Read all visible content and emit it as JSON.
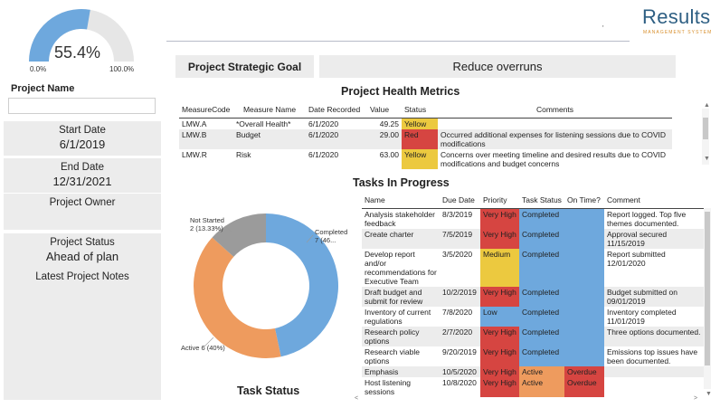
{
  "gauge": {
    "value": 55.4,
    "value_label": "55.4%",
    "min_label": "0.0%",
    "max_label": "100.0%",
    "fill_color": "#6ea8dd",
    "track_color": "#e6e6e6"
  },
  "project_name_label": "Project Name",
  "project_name_value": "",
  "start_date": {
    "label": "Start Date",
    "value": "6/1/2019"
  },
  "end_date": {
    "label": "End Date",
    "value": "12/31/2021"
  },
  "project_owner": {
    "label": "Project Owner",
    "value": ""
  },
  "project_status": {
    "label": "Project Status",
    "value": "Ahead of plan"
  },
  "latest_notes": {
    "label": "Latest Project Notes",
    "value": ""
  },
  "header": {
    "tick": "'"
  },
  "logo": {
    "main": "Results",
    "sub": "MANAGEMENT SYSTEM"
  },
  "goal": {
    "label": "Project Strategic Goal",
    "value": "Reduce overruns"
  },
  "health": {
    "title": "Project Health Metrics",
    "columns": [
      "MeasureCode",
      "Measure Name",
      "Date Recorded",
      "Value",
      "Status",
      "Comments"
    ],
    "rows": [
      {
        "code": "LMW.A",
        "name": "*Overall Health*",
        "date": "6/1/2020",
        "value": "49.25",
        "status": "Yellow",
        "comment": ""
      },
      {
        "code": "LMW.B",
        "name": "Budget",
        "date": "6/1/2020",
        "value": "29.00",
        "status": "Red",
        "comment": "Occurred additional expenses for listening sessions due to COVID modifications"
      },
      {
        "code": "LMW.R",
        "name": "Risk",
        "date": "6/1/2020",
        "value": "63.00",
        "status": "Yellow",
        "comment": "Concerns over meeting timeline and desired results due to COVID modifications and budget concerns"
      }
    ]
  },
  "tasks": {
    "title": "Tasks In Progress",
    "columns": [
      "Name",
      "Due Date",
      "Priority",
      "Task Status",
      "On Time?",
      "Comment"
    ],
    "rows": [
      {
        "name": "Analysis stakeholder feedback",
        "due": "8/3/2019",
        "priority": "Very High",
        "status": "Completed",
        "ontime": "",
        "comment": "Report logged. Top five themes documented."
      },
      {
        "name": "Create charter",
        "due": "7/5/2019",
        "priority": "Very High",
        "status": "Completed",
        "ontime": "",
        "comment": "Approval secured 11/15/2019"
      },
      {
        "name": "Develop report and/or recommendations for Executive Team",
        "due": "3/5/2020",
        "priority": "Medium",
        "status": "Completed",
        "ontime": "",
        "comment": "Report submitted 12/01/2020"
      },
      {
        "name": "Draft budget and submit for review",
        "due": "10/2/2019",
        "priority": "Very High",
        "status": "Completed",
        "ontime": "",
        "comment": "Budget submitted on 09/01/2019"
      },
      {
        "name": "Inventory of current regulations",
        "due": "7/8/2020",
        "priority": "Low",
        "status": "Completed",
        "ontime": "",
        "comment": "Inventory completed 11/01/2019"
      },
      {
        "name": "Research policy options",
        "due": "2/7/2020",
        "priority": "Very High",
        "status": "Completed",
        "ontime": "",
        "comment": "Three options documented."
      },
      {
        "name": "Research viable options",
        "due": "9/20/2019",
        "priority": "Very High",
        "status": "Completed",
        "ontime": "",
        "comment": "Emissions top issues have been documented."
      },
      {
        "name": "Emphasis",
        "due": "10/5/2020",
        "priority": "Very High",
        "status": "Active",
        "ontime": "Overdue",
        "comment": ""
      },
      {
        "name": "Host listening sessions",
        "due": "10/8/2020",
        "priority": "Very High",
        "status": "Active",
        "ontime": "Overdue",
        "comment": ""
      }
    ]
  },
  "task_status": {
    "title": "Task Status",
    "completed_label": "Completed",
    "completed_value": "7 (46...",
    "active_label": "Active 6 (40%)",
    "notstarted_label": "Not Started",
    "notstarted_value": "2 (13.33%)",
    "slices": [
      {
        "name": "Completed",
        "value": 7,
        "color": "#6ea8dd"
      },
      {
        "name": "Active",
        "value": 6,
        "color": "#ee9b5e"
      },
      {
        "name": "Not Started",
        "value": 2,
        "color": "#9b9b9b"
      }
    ]
  }
}
